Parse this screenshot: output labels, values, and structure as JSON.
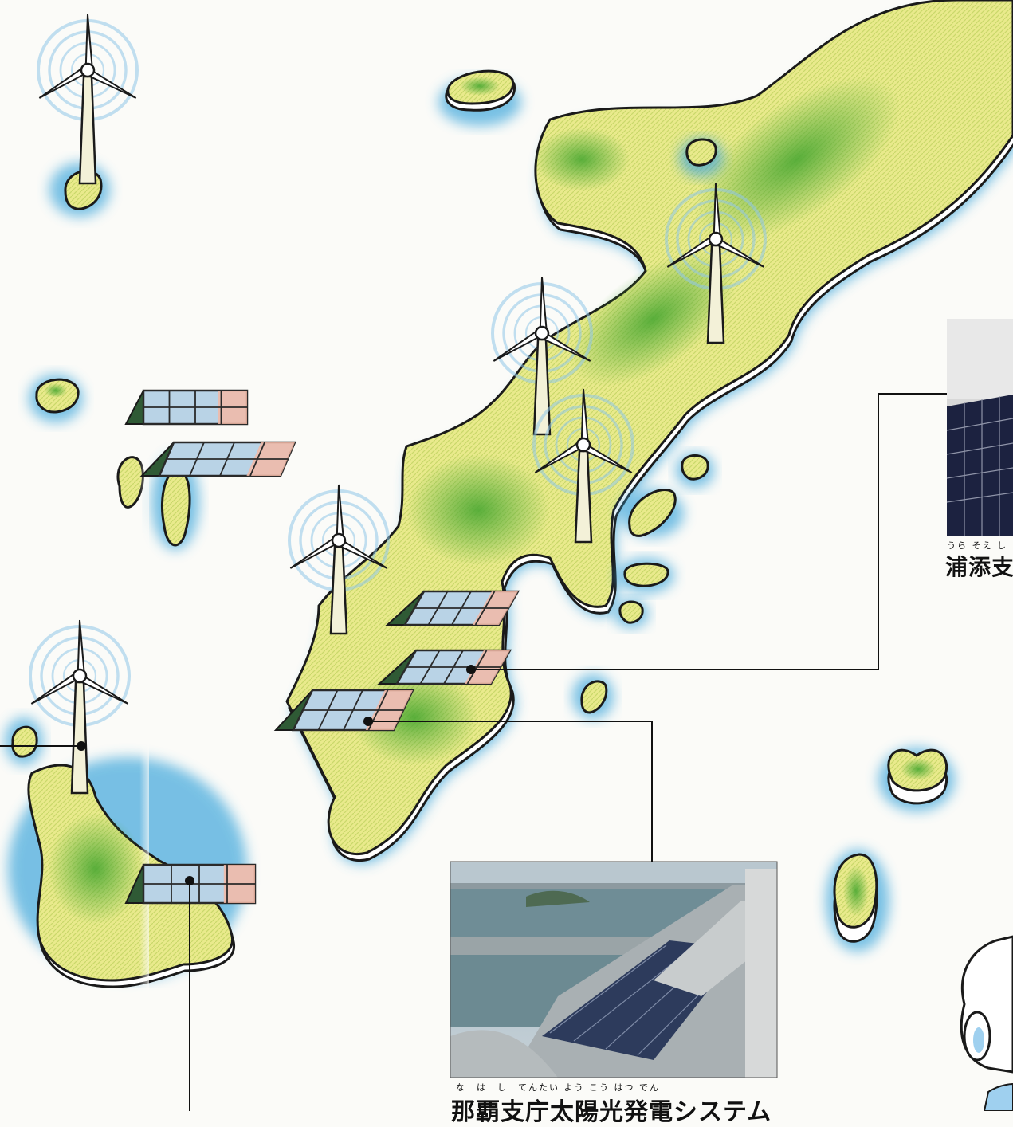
{
  "colors": {
    "sea": "#3fa7dc",
    "land_light": "#e6e88a",
    "land_green": "#58b03a",
    "outline": "#1a1a1a",
    "turbine_ring": "#8fc6e8",
    "panel_blue": "#b9d3e6",
    "panel_red": "#f2b9a6",
    "panel_frame": "#2a2a2a",
    "leader_line": "#111111"
  },
  "icons": {
    "wind_turbine": "wind-turbine-icon",
    "solar_panel": "solar-panel-icon",
    "leader_dot": "leader-dot-icon"
  },
  "captions": {
    "naha": {
      "ruby": "な　は　し　てんたい よう こう はつ でん",
      "text": "那覇支庁太陽光発電システム"
    },
    "urasoe": {
      "ruby": "うら そえ し",
      "text": "浦添支"
    }
  }
}
